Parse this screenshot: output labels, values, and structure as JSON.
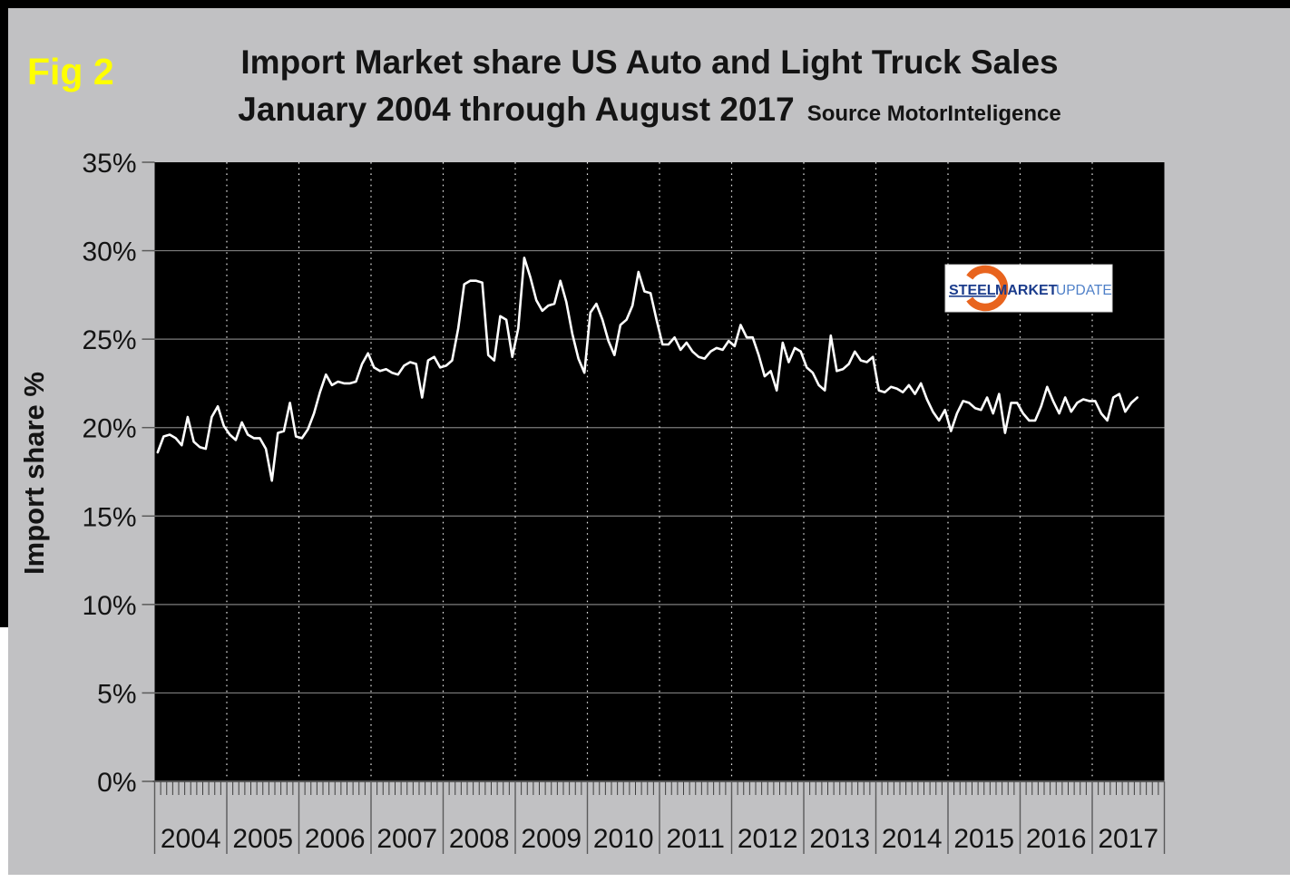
{
  "figure_label": "Fig 2",
  "title": {
    "line1": "Import Market share US Auto and Light Truck Sales",
    "line2": "January 2004 through August 2017",
    "source": "Source MotorInteligence"
  },
  "y_axis": {
    "label": "Import share %",
    "tick_labels": [
      "35%",
      "30%",
      "25%",
      "20%",
      "15%",
      "10%",
      "5%",
      "0%"
    ]
  },
  "x_axis": {
    "years": [
      "2004",
      "2005",
      "2006",
      "2007",
      "2008",
      "2009",
      "2010",
      "2011",
      "2012",
      "2013",
      "2014",
      "2015",
      "2016",
      "2017"
    ]
  },
  "logo": {
    "steel": "STEEL",
    "market": "MARKET",
    "update": "UPDATE"
  },
  "colors": {
    "background": "#c1c1c3",
    "plot_background": "#000000",
    "line": "#ffffff",
    "h_gridline": "#7d7d7d",
    "v_gridline_dotted": "#e8e8e8",
    "axis_and_ticks": "#5a5a5a",
    "figure_label": "#ffff00",
    "text": "#141414",
    "logo_navy": "#1b3c8c",
    "logo_light_blue": "#4f80c8",
    "logo_orange": "#e8641e"
  },
  "chart_data": {
    "type": "line",
    "title": "Import Market share US Auto and Light Truck Sales",
    "subtitle": "January 2004 through August 2017",
    "source": "Source MotorInteligence",
    "xlabel": "",
    "ylabel": "Import share %",
    "ylim": [
      0,
      35
    ],
    "yticks_percent": [
      0,
      5,
      10,
      15,
      20,
      25,
      30,
      35
    ],
    "x_frequency": "monthly",
    "x_start": "2004-01",
    "x_end": "2017-08",
    "grid": {
      "horizontal": "solid",
      "vertical": "dotted at year boundaries"
    },
    "legend_position": "none",
    "series": [
      {
        "name": "Import share %",
        "unit": "percent",
        "values_by_year": {
          "2004": [
            18.6,
            19.5,
            19.6,
            19.4,
            19.0,
            20.6,
            19.2,
            18.9,
            18.8,
            20.6,
            21.2,
            20.1
          ],
          "2005": [
            19.6,
            19.3,
            20.3,
            19.6,
            19.4,
            19.4,
            18.8,
            17.0,
            19.7,
            19.8,
            21.4,
            19.5
          ],
          "2006": [
            19.4,
            19.9,
            20.8,
            22.0,
            23.0,
            22.4,
            22.6,
            22.5,
            22.5,
            22.6,
            23.6,
            24.2
          ],
          "2007": [
            23.4,
            23.2,
            23.3,
            23.1,
            23.0,
            23.5,
            23.7,
            23.6,
            21.7,
            23.8,
            24.0,
            23.4
          ],
          "2008": [
            23.5,
            23.8,
            25.6,
            28.1,
            28.3,
            28.3,
            28.2,
            24.1,
            23.8,
            26.3,
            26.1,
            24.0
          ],
          "2009": [
            25.6,
            29.6,
            28.5,
            27.2,
            26.6,
            26.9,
            27.0,
            28.3,
            27.1,
            25.3,
            23.9,
            23.1
          ],
          "2010": [
            26.5,
            27.0,
            26.1,
            24.9,
            24.1,
            25.8,
            26.1,
            26.9,
            28.8,
            27.7,
            27.6,
            26.1
          ],
          "2011": [
            24.7,
            24.7,
            25.1,
            24.4,
            24.8,
            24.3,
            24.0,
            23.9,
            24.3,
            24.5,
            24.4,
            24.9
          ],
          "2012": [
            24.6,
            25.8,
            25.1,
            25.1,
            24.1,
            22.9,
            23.2,
            22.1,
            24.8,
            23.7,
            24.5,
            24.3
          ],
          "2013": [
            23.4,
            23.1,
            22.4,
            22.1,
            25.2,
            23.2,
            23.3,
            23.6,
            24.3,
            23.8,
            23.7,
            24.0
          ],
          "2014": [
            22.1,
            22.0,
            22.3,
            22.2,
            22.0,
            22.4,
            21.9,
            22.5,
            21.6,
            20.9,
            20.4,
            21.0
          ],
          "2015": [
            19.8,
            20.8,
            21.5,
            21.4,
            21.1,
            21.0,
            21.7,
            20.8,
            21.9,
            19.7,
            21.4,
            21.4
          ],
          "2016": [
            20.8,
            20.4,
            20.4,
            21.2,
            22.3,
            21.5,
            20.8,
            21.7,
            20.9,
            21.4,
            21.6,
            21.5
          ],
          "2017": [
            21.5,
            20.8,
            20.4,
            21.7,
            21.9,
            20.9,
            21.4,
            21.7
          ]
        }
      }
    ]
  }
}
